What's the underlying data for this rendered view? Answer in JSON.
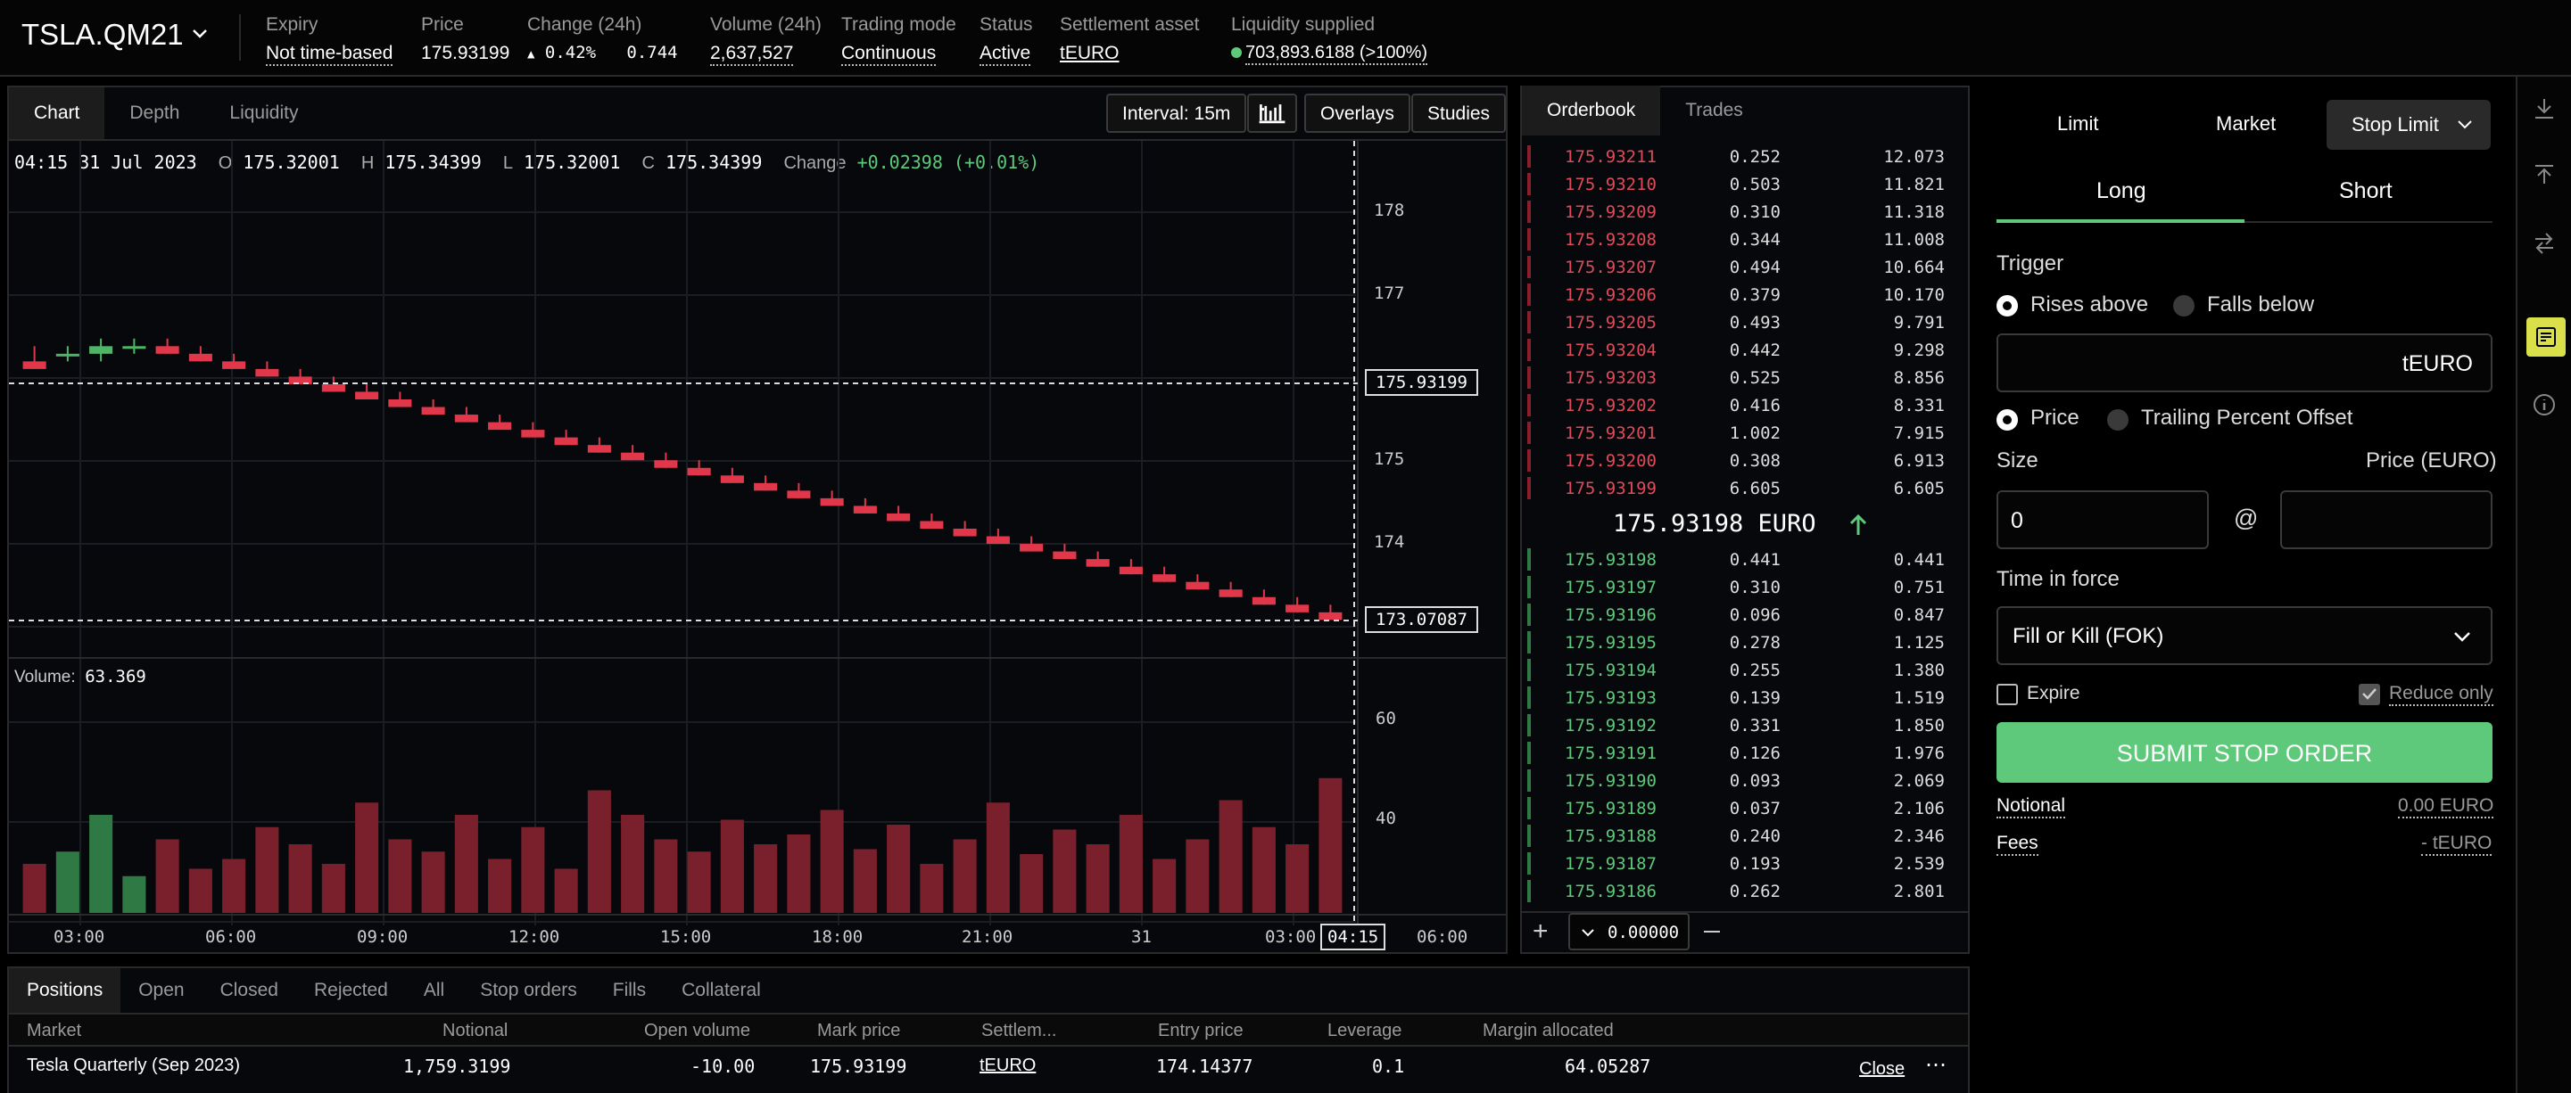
{
  "header": {
    "market": "TSLA.QM21",
    "items": [
      {
        "label": "Expiry",
        "value": "Not time-based"
      },
      {
        "label": "Price",
        "value": "175.93199"
      },
      {
        "label": "Change (24h)",
        "value": "0.42%",
        "value2": "0.744"
      },
      {
        "label": "Volume (24h)",
        "value": "2,637,527"
      },
      {
        "label": "Trading mode",
        "value": "Continuous"
      },
      {
        "label": "Status",
        "value": "Active"
      },
      {
        "label": "Settlement asset",
        "value": "tEURO"
      },
      {
        "label": "Liquidity supplied",
        "value": "703,893.6188 (>100%)"
      }
    ]
  },
  "chart": {
    "tabs": [
      "Chart",
      "Depth",
      "Liquidity"
    ],
    "buttons": {
      "interval": "Interval: 15m",
      "overlays": "Overlays",
      "studies": "Studies"
    },
    "ohlc": {
      "time": "04:15 31 Jul 2023",
      "o_label": "O",
      "o": "175.32001",
      "h_label": "H",
      "h": "175.34399",
      "l_label": "L",
      "l": "175.32001",
      "c_label": "C",
      "c": "175.34399",
      "change_label": "Change",
      "change": "+0.02398 (+0.01%)"
    },
    "price_marker_high": "175.93199",
    "price_marker_low": "173.07087",
    "volume_label": "Volume:",
    "volume_value": "63.369",
    "crosshair_time": "04:15",
    "chart_data": {
      "type": "candlestick",
      "y_ticks": [
        178,
        177,
        175,
        174
      ],
      "ylim": [
        172.1,
        178.9
      ],
      "volume_ticks": [
        60,
        40
      ],
      "volume_ylim": [
        0,
        80
      ],
      "x_ticks": [
        "03:00",
        "06:00",
        "09:00",
        "12:00",
        "15:00",
        "18:00",
        "21:00",
        "31",
        "03:00",
        "06:00"
      ],
      "candles": [
        [
          176.0,
          176.2,
          175.9,
          175.9,
          20
        ],
        [
          176.1,
          176.2,
          176.0,
          176.1,
          25
        ],
        [
          176.1,
          176.3,
          176.0,
          176.2,
          40
        ],
        [
          176.2,
          176.3,
          176.1,
          176.2,
          15
        ],
        [
          176.2,
          176.3,
          176.1,
          176.1,
          30
        ],
        [
          176.1,
          176.2,
          176.0,
          176.0,
          18
        ],
        [
          176.0,
          176.1,
          175.9,
          175.9,
          22
        ],
        [
          175.9,
          176.0,
          175.8,
          175.8,
          35
        ],
        [
          175.8,
          175.9,
          175.7,
          175.7,
          28
        ],
        [
          175.7,
          175.8,
          175.6,
          175.6,
          20
        ],
        [
          175.6,
          175.7,
          175.5,
          175.5,
          45
        ],
        [
          175.5,
          175.6,
          175.4,
          175.4,
          30
        ],
        [
          175.4,
          175.5,
          175.3,
          175.3,
          25
        ],
        [
          175.3,
          175.4,
          175.2,
          175.2,
          40
        ],
        [
          175.2,
          175.3,
          175.1,
          175.1,
          22
        ],
        [
          175.1,
          175.2,
          175.0,
          175.0,
          35
        ],
        [
          175.0,
          175.1,
          174.9,
          174.9,
          18
        ],
        [
          174.9,
          175.0,
          174.8,
          174.8,
          50
        ],
        [
          174.8,
          174.9,
          174.7,
          174.7,
          40
        ],
        [
          174.7,
          174.8,
          174.6,
          174.6,
          30
        ],
        [
          174.6,
          174.7,
          174.5,
          174.5,
          25
        ],
        [
          174.5,
          174.6,
          174.4,
          174.4,
          38
        ],
        [
          174.4,
          174.5,
          174.3,
          174.3,
          28
        ],
        [
          174.3,
          174.4,
          174.2,
          174.2,
          32
        ],
        [
          174.2,
          174.3,
          174.1,
          174.1,
          42
        ],
        [
          174.1,
          174.2,
          174.0,
          174.0,
          26
        ],
        [
          174.0,
          174.1,
          173.9,
          173.9,
          36
        ],
        [
          173.9,
          174.0,
          173.8,
          173.8,
          20
        ],
        [
          173.8,
          173.9,
          173.7,
          173.7,
          30
        ],
        [
          173.7,
          173.8,
          173.6,
          173.6,
          45
        ],
        [
          173.6,
          173.7,
          173.5,
          173.5,
          24
        ],
        [
          173.5,
          173.6,
          173.4,
          173.4,
          34
        ],
        [
          173.4,
          173.5,
          173.3,
          173.3,
          28
        ],
        [
          173.3,
          173.4,
          173.2,
          173.2,
          40
        ],
        [
          173.2,
          173.3,
          173.1,
          173.1,
          22
        ],
        [
          173.1,
          173.2,
          173.0,
          173.0,
          30
        ],
        [
          173.0,
          173.1,
          172.9,
          172.9,
          46
        ],
        [
          172.9,
          173.0,
          172.8,
          172.8,
          35
        ],
        [
          172.8,
          172.9,
          172.7,
          172.7,
          28
        ],
        [
          172.7,
          172.8,
          172.6,
          172.6,
          55
        ]
      ]
    }
  },
  "orderbook": {
    "tabs": [
      "Orderbook",
      "Trades"
    ],
    "asks": [
      {
        "p": "175.93211",
        "s": "0.252",
        "c": "12.073"
      },
      {
        "p": "175.93210",
        "s": "0.503",
        "c": "11.821"
      },
      {
        "p": "175.93209",
        "s": "0.310",
        "c": "11.318"
      },
      {
        "p": "175.93208",
        "s": "0.344",
        "c": "11.008"
      },
      {
        "p": "175.93207",
        "s": "0.494",
        "c": "10.664"
      },
      {
        "p": "175.93206",
        "s": "0.379",
        "c": "10.170"
      },
      {
        "p": "175.93205",
        "s": "0.493",
        "c": "9.791"
      },
      {
        "p": "175.93204",
        "s": "0.442",
        "c": "9.298"
      },
      {
        "p": "175.93203",
        "s": "0.525",
        "c": "8.856"
      },
      {
        "p": "175.93202",
        "s": "0.416",
        "c": "8.331"
      },
      {
        "p": "175.93201",
        "s": "1.002",
        "c": "7.915"
      },
      {
        "p": "175.93200",
        "s": "0.308",
        "c": "6.913"
      },
      {
        "p": "175.93199",
        "s": "6.605",
        "c": "6.605"
      }
    ],
    "mid": "175.93198 EURO",
    "bids": [
      {
        "p": "175.93198",
        "s": "0.441",
        "c": "0.441"
      },
      {
        "p": "175.93197",
        "s": "0.310",
        "c": "0.751"
      },
      {
        "p": "175.93196",
        "s": "0.096",
        "c": "0.847"
      },
      {
        "p": "175.93195",
        "s": "0.278",
        "c": "1.125"
      },
      {
        "p": "175.93194",
        "s": "0.255",
        "c": "1.380"
      },
      {
        "p": "175.93193",
        "s": "0.139",
        "c": "1.519"
      },
      {
        "p": "175.93192",
        "s": "0.331",
        "c": "1.850"
      },
      {
        "p": "175.93191",
        "s": "0.126",
        "c": "1.976"
      },
      {
        "p": "175.93190",
        "s": "0.093",
        "c": "2.069"
      },
      {
        "p": "175.93189",
        "s": "0.037",
        "c": "2.106"
      },
      {
        "p": "175.93188",
        "s": "0.240",
        "c": "2.346"
      },
      {
        "p": "175.93187",
        "s": "0.193",
        "c": "2.539"
      },
      {
        "p": "175.93186",
        "s": "0.262",
        "c": "2.801"
      }
    ],
    "resolution": "0.00000"
  },
  "ticket": {
    "types": [
      "Limit",
      "Market",
      "Stop Limit"
    ],
    "sides": [
      "Long",
      "Short"
    ],
    "trigger_label": "Trigger",
    "rises_above": "Rises above",
    "falls_below": "Falls below",
    "trigger_unit": "tEURO",
    "price_opt": "Price",
    "trailing_opt": "Trailing Percent Offset",
    "size_label": "Size",
    "price_label": "Price (EURO)",
    "size_value": "0",
    "at": "@",
    "tif_label": "Time in force",
    "tif_value": "Fill or Kill (FOK)",
    "expire": "Expire",
    "reduce_only": "Reduce only",
    "submit": "SUBMIT STOP ORDER",
    "notional_label": "Notional",
    "notional_value": "0.00 EURO",
    "fees_label": "Fees",
    "fees_value": "- tEURO"
  },
  "positions": {
    "tabs": [
      "Positions",
      "Open",
      "Closed",
      "Rejected",
      "All",
      "Stop orders",
      "Fills",
      "Collateral"
    ],
    "headers": [
      "Market",
      "Notional",
      "Open volume",
      "Mark price",
      "Settlem...",
      "Entry price",
      "Leverage",
      "Margin allocated"
    ],
    "row": {
      "market": "Tesla Quarterly (Sep 2023)",
      "notional": "1,759.3199",
      "open_volume": "-10.00",
      "mark_price": "175.93199",
      "settlement": "tEURO",
      "entry_price": "174.14377",
      "leverage": "0.1",
      "margin": "64.05287",
      "close": "Close"
    }
  },
  "colors": {
    "up": "#4fb566",
    "down": "#e0384a",
    "accent": "#5ec97a",
    "button": "#5ec97a"
  }
}
